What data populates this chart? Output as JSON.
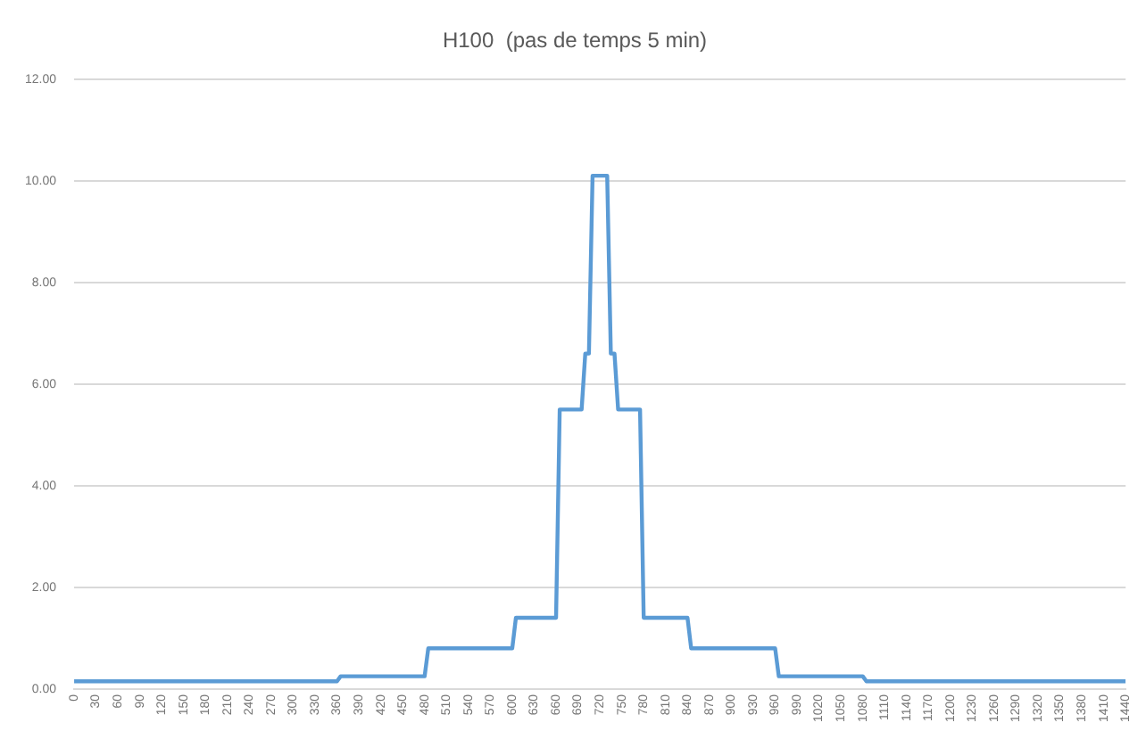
{
  "chart_data": {
    "type": "line",
    "title": "H100  (pas de temps 5 min)",
    "x": [
      0,
      360,
      365,
      480,
      485,
      600,
      605,
      660,
      665,
      695,
      700,
      705,
      710,
      730,
      735,
      740,
      745,
      775,
      780,
      840,
      845,
      960,
      965,
      1080,
      1085,
      1440
    ],
    "series": [
      {
        "color": "#5b9bd5",
        "values": [
          0.15,
          0.15,
          0.25,
          0.25,
          0.8,
          0.8,
          1.4,
          1.4,
          5.5,
          5.5,
          6.6,
          6.6,
          10.1,
          10.1,
          6.6,
          6.6,
          5.5,
          5.5,
          1.4,
          1.4,
          0.8,
          0.8,
          0.25,
          0.25,
          0.15,
          0.15
        ]
      }
    ],
    "xlim": [
      0,
      1440
    ],
    "xticks": [
      0,
      30,
      60,
      90,
      120,
      150,
      180,
      210,
      240,
      270,
      300,
      330,
      360,
      390,
      420,
      450,
      480,
      510,
      540,
      570,
      600,
      630,
      660,
      690,
      720,
      750,
      780,
      810,
      840,
      870,
      900,
      930,
      960,
      990,
      1020,
      1050,
      1080,
      1110,
      1140,
      1170,
      1200,
      1230,
      1260,
      1290,
      1320,
      1350,
      1380,
      1410,
      1440
    ],
    "ylim": [
      0,
      12
    ],
    "yticks": [
      {
        "value": 0,
        "label": "0.00"
      },
      {
        "value": 2,
        "label": "2.00"
      },
      {
        "value": 4,
        "label": "4.00"
      },
      {
        "value": 6,
        "label": "6.00"
      },
      {
        "value": 8,
        "label": "8.00"
      },
      {
        "value": 10,
        "label": "10.00"
      },
      {
        "value": 12,
        "label": "12.00"
      }
    ],
    "grid": "y",
    "marker": "none",
    "line_style": "solid"
  }
}
